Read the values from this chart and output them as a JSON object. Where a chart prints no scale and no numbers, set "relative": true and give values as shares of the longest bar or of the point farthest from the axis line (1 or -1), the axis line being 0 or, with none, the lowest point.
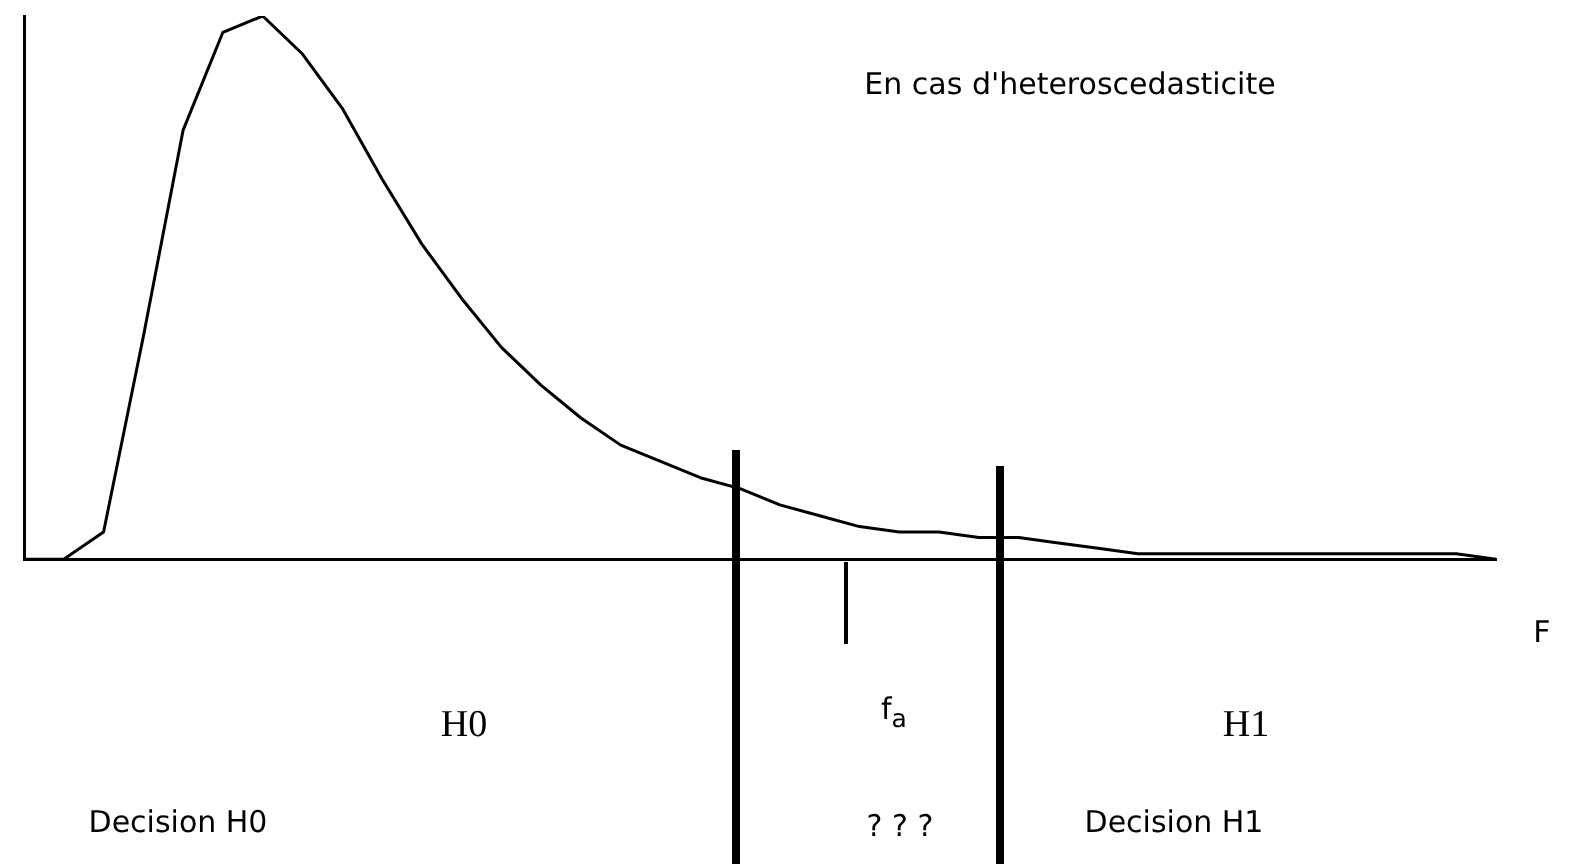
{
  "chart_data": {
    "type": "line",
    "relative": true,
    "xlabel": "F",
    "categories": [
      null,
      null,
      null,
      null,
      null,
      null,
      null,
      null,
      null,
      null,
      null,
      null,
      null,
      null,
      null,
      null,
      null,
      null,
      null,
      null,
      null,
      null,
      null,
      null,
      null,
      null,
      null,
      null,
      null,
      null,
      null,
      null,
      null,
      null,
      null,
      null,
      null,
      null
    ],
    "series": [
      {
        "color": "#000000",
        "values": [
          0,
          0,
          0.05,
          0.41,
          0.79,
          0.97,
          1,
          0.93,
          0.83,
          0.7,
          0.58,
          0.48,
          0.39,
          0.32,
          0.26,
          0.21,
          0.18,
          0.15,
          0.13,
          0.1,
          0.08,
          0.06,
          0.05,
          0.05,
          0.04,
          0.04,
          0.03,
          0.02,
          0.01,
          0.01,
          0.01,
          0.01,
          0.01,
          0.01,
          0.01,
          0.01,
          0.01,
          0
        ]
      }
    ],
    "annotations": [
      "En cas d'heteroscedasticite",
      "H0",
      "H1",
      "f$_{a}$",
      "Decision H0",
      "? ? ?",
      "Decision H1"
    ],
    "marker": "none",
    "line_style": "solid",
    "grid": false,
    "legend": false
  }
}
